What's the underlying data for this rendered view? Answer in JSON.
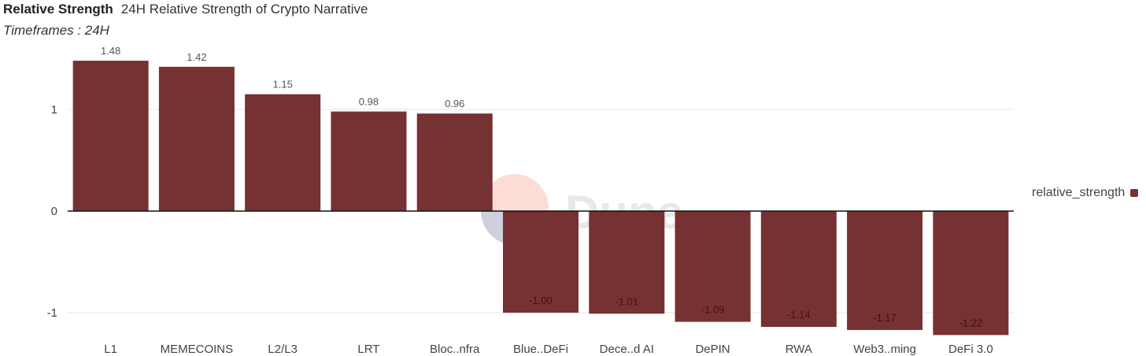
{
  "header": {
    "title": "Relative Strength",
    "subtitle": "24H Relative Strength of Crypto Narrative",
    "timeframes": "Timeframes : 24H"
  },
  "watermark": "Dune",
  "colors": {
    "bar": "#763133",
    "grid": "#e6e6e6",
    "axis": "#111111"
  },
  "chart_data": {
    "type": "bar",
    "categories": [
      "L1",
      "MEMECOINS",
      "L2/L3",
      "LRT",
      "Bloc..nfra",
      "Blue..DeFi",
      "Dece..d AI",
      "DePIN",
      "RWA",
      "Web3..ming",
      "DeFi 3.0"
    ],
    "series": [
      {
        "name": "relative_strength",
        "values": [
          1.48,
          1.42,
          1.15,
          0.98,
          0.96,
          -1.0,
          -1.01,
          -1.09,
          -1.14,
          -1.17,
          -1.22
        ],
        "labels": [
          "1.48",
          "1.42",
          "1.15",
          "0.98",
          "0.96",
          "-1.00",
          "-1.01",
          "-1.09",
          "-1.14",
          "-1.17",
          "-1.22"
        ]
      }
    ],
    "yticks": [
      1,
      0,
      -1
    ],
    "ylim": [
      -1.3,
      1.55
    ],
    "grid": true,
    "legend": "right"
  }
}
